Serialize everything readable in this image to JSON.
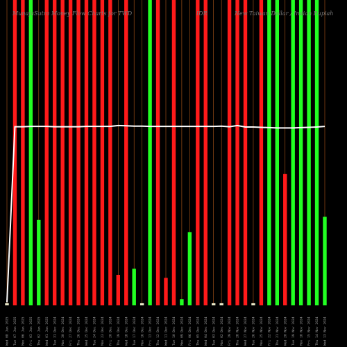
{
  "chart_data": {
    "type": "bar",
    "title_parts": [
      "MunafaSutra Money Flow Charts for TWD",
      "IDR",
      "New Taiwan Dollar / Indian Rupiah"
    ],
    "ylim": [
      0,
      100
    ],
    "categories": [
      "Wed 08 Jan 2025",
      "Tue 07 Jan 2025",
      "Mon 06 Jan 2025",
      "Fri 03 Jan 2025",
      "Thu 02 Jan 2025",
      "Wed 01 Jan 2025",
      "Tue 31 Dec 2024",
      "Mon 30 Dec 2024",
      "Fri 27 Dec 2024",
      "Thu 26 Dec 2024",
      "Wed 25 Dec 2024",
      "Tue 24 Dec 2024",
      "Mon 23 Dec 2024",
      "Fri 20 Dec 2024",
      "Thu 19 Dec 2024",
      "Wed 18 Dec 2024",
      "Tue 17 Dec 2024",
      "Mon 16 Dec 2024",
      "Fri 13 Dec 2024",
      "Thu 12 Dec 2024",
      "Wed 11 Dec 2024",
      "Tue 10 Dec 2024",
      "Mon 09 Dec 2024",
      "Fri 06 Dec 2024",
      "Thu 05 Dec 2024",
      "Wed 04 Dec 2024",
      "Tue 03 Dec 2024",
      "Mon 02 Dec 2024",
      "Fri 29 Nov 2024",
      "Thu 28 Nov 2024",
      "Wed 27 Nov 2024",
      "Tue 26 Nov 2024",
      "Mon 25 Nov 2024",
      "Fri 22 Nov 2024",
      "Thu 21 Nov 2024",
      "Wed 20 Nov 2024",
      "Tue 19 Nov 2024",
      "Mon 18 Nov 2024",
      "Fri 15 Nov 2024",
      "Thu 14 Nov 2024",
      "Wed 13 Nov 2024"
    ],
    "bars": [
      {
        "value": 0.5,
        "dir": "up"
      },
      {
        "value": 100,
        "dir": "down"
      },
      {
        "value": 100,
        "dir": "down"
      },
      {
        "value": 100,
        "dir": "up"
      },
      {
        "value": 28,
        "dir": "up"
      },
      {
        "value": 100,
        "dir": "down"
      },
      {
        "value": 100,
        "dir": "down"
      },
      {
        "value": 100,
        "dir": "down"
      },
      {
        "value": 100,
        "dir": "down"
      },
      {
        "value": 100,
        "dir": "down"
      },
      {
        "value": 100,
        "dir": "down"
      },
      {
        "value": 100,
        "dir": "down"
      },
      {
        "value": 100,
        "dir": "down"
      },
      {
        "value": 100,
        "dir": "down"
      },
      {
        "value": 10,
        "dir": "down"
      },
      {
        "value": 100,
        "dir": "down"
      },
      {
        "value": 12,
        "dir": "up"
      },
      {
        "value": 0.5,
        "dir": "up"
      },
      {
        "value": 100,
        "dir": "up"
      },
      {
        "value": 100,
        "dir": "down"
      },
      {
        "value": 9,
        "dir": "down"
      },
      {
        "value": 100,
        "dir": "down"
      },
      {
        "value": 2,
        "dir": "up"
      },
      {
        "value": 24,
        "dir": "up"
      },
      {
        "value": 100,
        "dir": "down"
      },
      {
        "value": 100,
        "dir": "down"
      },
      {
        "value": 0.5,
        "dir": "up"
      },
      {
        "value": 0.5,
        "dir": "up"
      },
      {
        "value": 100,
        "dir": "down"
      },
      {
        "value": 100,
        "dir": "down"
      },
      {
        "value": 100,
        "dir": "down"
      },
      {
        "value": 0.5,
        "dir": "up"
      },
      {
        "value": 100,
        "dir": "down"
      },
      {
        "value": 100,
        "dir": "up"
      },
      {
        "value": 100,
        "dir": "up"
      },
      {
        "value": 43,
        "dir": "down"
      },
      {
        "value": 100,
        "dir": "up"
      },
      {
        "value": 100,
        "dir": "up"
      },
      {
        "value": 100,
        "dir": "up"
      },
      {
        "value": 100,
        "dir": "up"
      },
      {
        "value": 29,
        "dir": "up"
      }
    ],
    "price_line": [
      1,
      58.5,
      58.5,
      58.6,
      58.6,
      58.6,
      58.5,
      58.5,
      58.5,
      58.5,
      58.6,
      58.6,
      58.6,
      58.6,
      58.9,
      58.8,
      58.7,
      58.7,
      58.6,
      58.6,
      58.6,
      58.6,
      58.6,
      58.6,
      58.6,
      58.6,
      58.6,
      58.7,
      58.5,
      58.9,
      58.4,
      58.4,
      58.3,
      58.2,
      58.1,
      58.1,
      58.1,
      58.2,
      58.3,
      58.4,
      58.6
    ],
    "colors": {
      "background": "#000000",
      "up": "#22ff22",
      "down": "#ff1a1a",
      "price_line": "#ffffff",
      "tiny_bar": "#e8e8c8",
      "vline": "#d2691e",
      "title": "#7a7a7a",
      "tick": "#9a9a9a"
    }
  }
}
